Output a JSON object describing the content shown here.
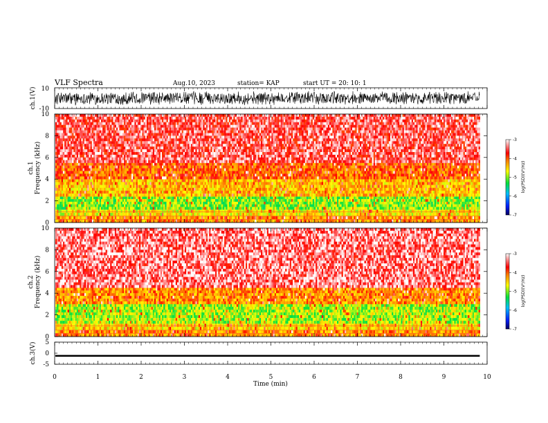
{
  "header": {
    "title": "VLF Spectra",
    "date": "Aug.10, 2023",
    "station": "station= KAP",
    "start": "start  UT  =   20: 10: 1"
  },
  "colors": {
    "axis": "#000000",
    "spectrogram_high": "#ff2020",
    "spectrogram_mid": "#ffe000",
    "spectrogram_low": "#20e020"
  },
  "chart_data": [
    {
      "type": "line",
      "name": "ch1-waveform",
      "ylabel": "ch.1(V)",
      "ylim": [
        -10,
        10
      ],
      "yticks": [
        "10",
        "-10"
      ],
      "xlim": [
        0,
        10
      ],
      "span_min": 9.83,
      "amplitude_range": [
        -7,
        7
      ]
    },
    {
      "type": "heatmap",
      "name": "ch1-spectrogram",
      "ylabel": "ch.1\nFrequency (kHz)",
      "ylim": [
        0,
        10
      ],
      "yticks": [
        "0",
        "2",
        "4",
        "6",
        "8",
        "10"
      ],
      "xlim": [
        0,
        10
      ],
      "span_min": 9.83,
      "colorbar": {
        "label": "log(PSD)(V²/Hz)",
        "range": [
          -7,
          -3
        ],
        "ticks": [
          "-3",
          "-4",
          "-5",
          "-6",
          "-7"
        ]
      },
      "bands": [
        {
          "f_low": 0,
          "f_high": 0.6,
          "level": -4.2
        },
        {
          "f_low": 0.6,
          "f_high": 1.2,
          "level": -4.6
        },
        {
          "f_low": 1.2,
          "f_high": 2.4,
          "level": -5.0
        },
        {
          "f_low": 2.4,
          "f_high": 4.0,
          "level": -4.4
        },
        {
          "f_low": 4.0,
          "f_high": 5.5,
          "level": -4.0
        },
        {
          "f_low": 5.5,
          "f_high": 10,
          "level": -3.5
        }
      ]
    },
    {
      "type": "heatmap",
      "name": "ch2-spectrogram",
      "ylabel": "ch.2\nFrequency (kHz)",
      "ylim": [
        0,
        10
      ],
      "yticks": [
        "0",
        "2",
        "4",
        "6",
        "8",
        "10"
      ],
      "xlim": [
        0,
        10
      ],
      "span_min": 9.83,
      "colorbar": {
        "label": "log(PSD)(V²/Hz)",
        "range": [
          -7,
          -3
        ],
        "ticks": [
          "-3",
          "-4",
          "-5",
          "-6",
          "-7"
        ]
      },
      "bands": [
        {
          "f_low": 0,
          "f_high": 0.6,
          "level": -4.2
        },
        {
          "f_low": 0.6,
          "f_high": 1.2,
          "level": -4.5
        },
        {
          "f_low": 1.2,
          "f_high": 3.0,
          "level": -4.9
        },
        {
          "f_low": 3.0,
          "f_high": 4.5,
          "level": -4.2
        },
        {
          "f_low": 4.5,
          "f_high": 10,
          "level": -3.4
        }
      ]
    },
    {
      "type": "line",
      "name": "ch3-waveform",
      "ylabel": "ch.3(V)",
      "ylim": [
        -5,
        5
      ],
      "yticks": [
        "5",
        "0",
        "-5"
      ],
      "xlim": [
        0,
        10
      ],
      "span_min": 9.83,
      "amplitude_range": [
        -1.6,
        -0.8
      ]
    }
  ],
  "xaxis": {
    "label": "Time (min)",
    "ticks": [
      "0",
      "1",
      "2",
      "3",
      "4",
      "5",
      "6",
      "7",
      "8",
      "9",
      "10"
    ]
  }
}
